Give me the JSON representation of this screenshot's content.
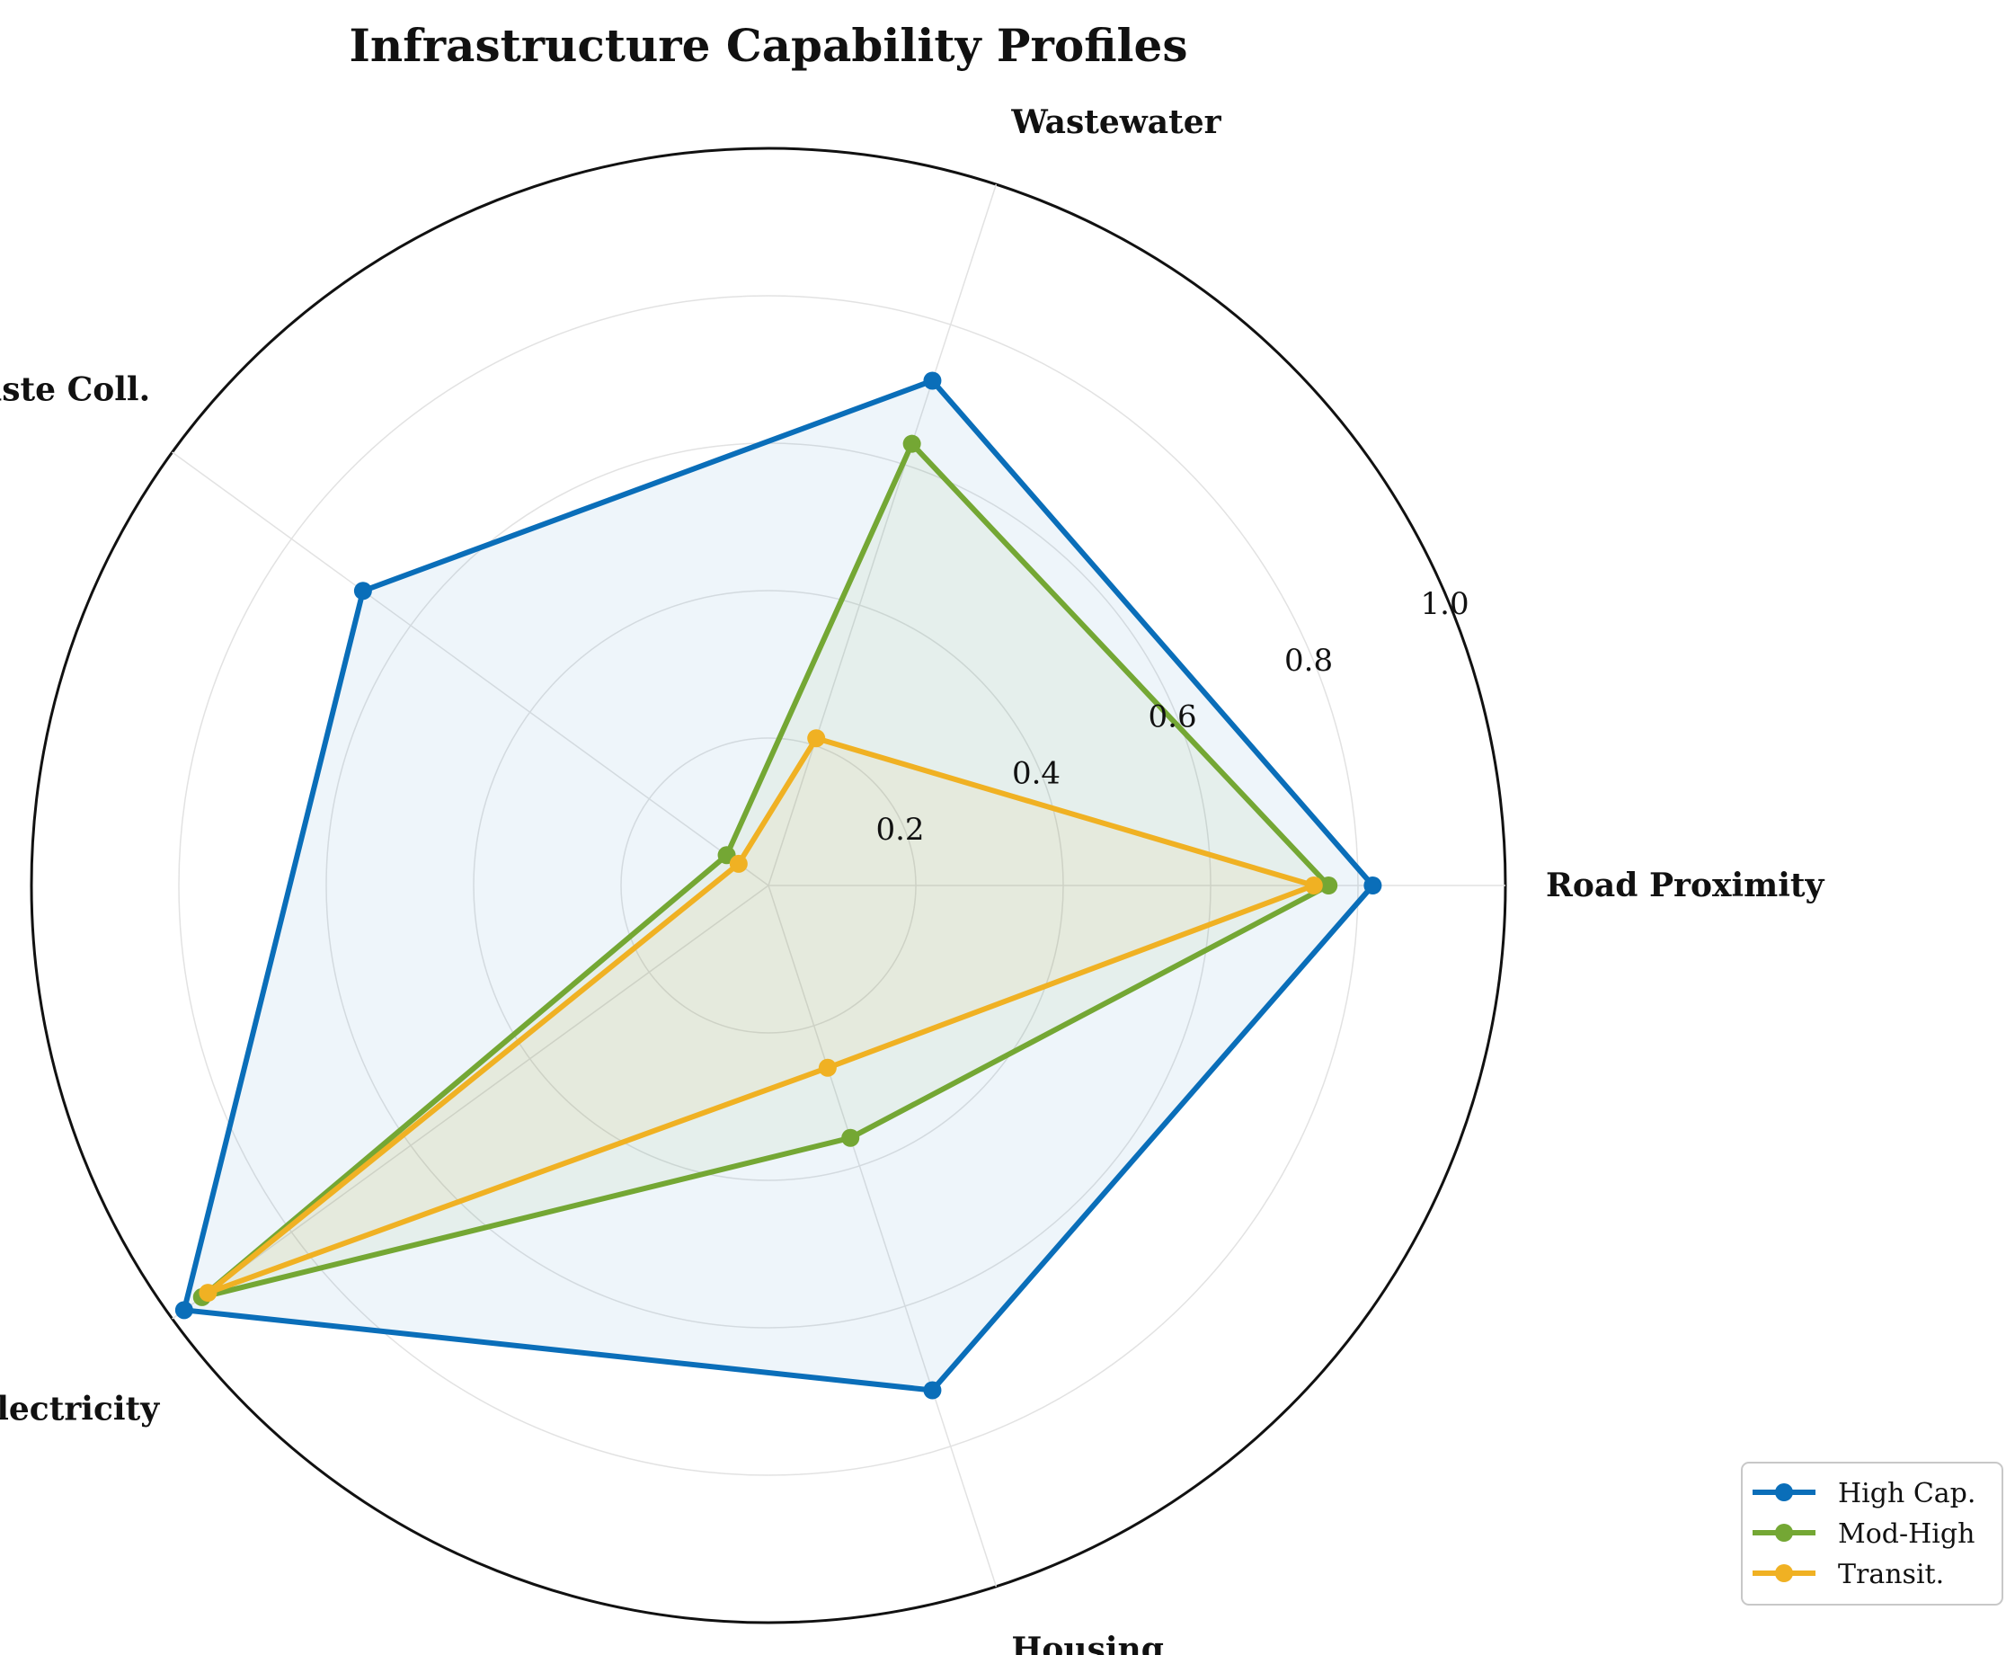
{
  "chart_data": {
    "type": "radar",
    "title": "Infrastructure Capability Profiles",
    "axes": [
      "Road Proximity",
      "Wastewater",
      "Waste Coll.",
      "Electricity",
      "Housing"
    ],
    "rlim": [
      0,
      1.0
    ],
    "r_ticks": [
      0.2,
      0.4,
      0.6,
      0.8,
      1.0
    ],
    "r_tick_labels": [
      "0.2",
      "0.4",
      "0.6",
      "0.8",
      "1.0"
    ],
    "grid": true,
    "legend_position": "bottom-right",
    "series": [
      {
        "name": "High Cap.",
        "color": "#0a6eb9",
        "fill_opacity": 0.07,
        "values": [
          0.82,
          0.72,
          0.68,
          0.98,
          0.72
        ]
      },
      {
        "name": "Mod-High",
        "color": "#74a734",
        "fill_opacity": 0.07,
        "values": [
          0.76,
          0.63,
          0.07,
          0.95,
          0.36
        ]
      },
      {
        "name": "Transit.",
        "color": "#f0b123",
        "fill_opacity": 0.07,
        "values": [
          0.74,
          0.21,
          0.05,
          0.94,
          0.26
        ]
      }
    ]
  }
}
